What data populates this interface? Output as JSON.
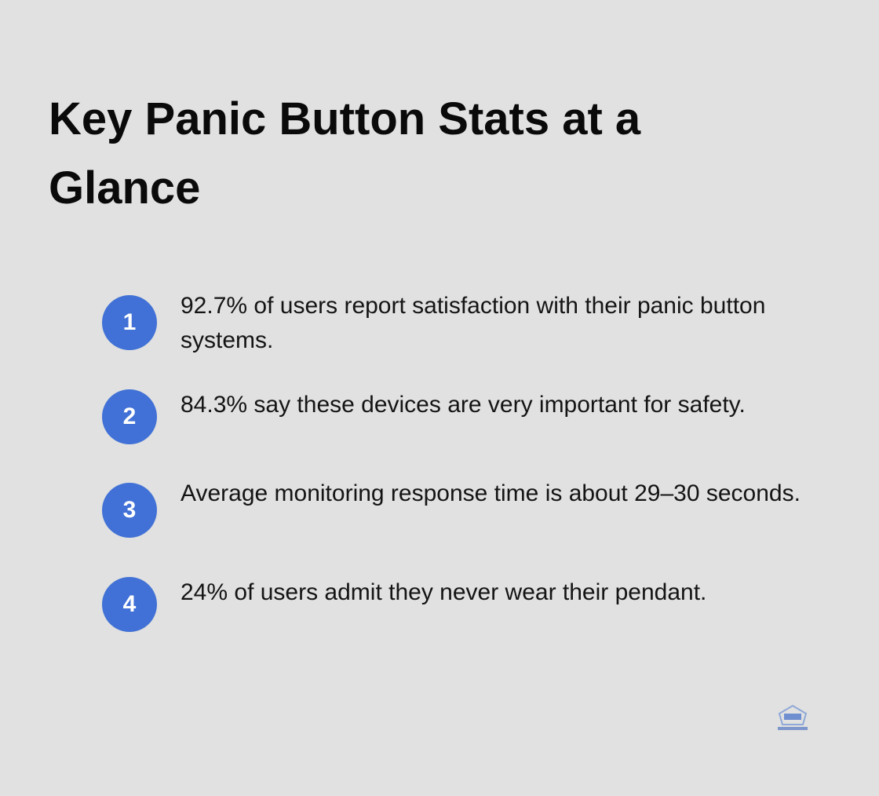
{
  "title": "Key Panic Button Stats at a Glance",
  "items": [
    {
      "number": "1",
      "text": "92.7% of users report satisfaction with their panic button systems."
    },
    {
      "number": "2",
      "text": "84.3% say these devices are very important for safety."
    },
    {
      "number": "3",
      "text": "Average monitoring response time is about 29–30 seconds."
    },
    {
      "number": "4",
      "text": "24% of users admit they never wear their pendant."
    }
  ]
}
